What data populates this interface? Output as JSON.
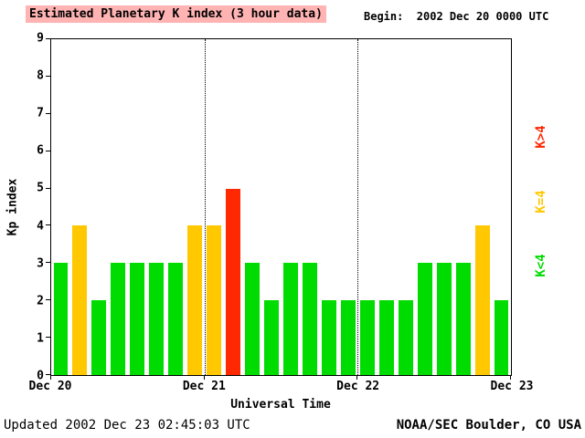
{
  "title": "Estimated Planetary K index (3 hour data)",
  "begin_label": "Begin:  2002 Dec 20 0000 UTC",
  "footer": {
    "updated": "Updated 2002 Dec 23 02:45:03 UTC",
    "source": "NOAA/SEC Boulder, CO USA"
  },
  "legend": [
    {
      "label": "K>4",
      "color": "#ff2800"
    },
    {
      "label": "K=4",
      "color": "#ffc800"
    },
    {
      "label": "K<4",
      "color": "#00dc00"
    }
  ],
  "colors": {
    "title_background": "#ffb3b3",
    "bar_low": "#00dc00",
    "bar_mid": "#ffc800",
    "bar_high": "#ff2800"
  },
  "chart_data": {
    "type": "bar",
    "title": "Estimated Planetary K index (3 hour data)",
    "xlabel": "Universal Time",
    "ylabel": "Kp index",
    "ylim": [
      0,
      9
    ],
    "yticks": [
      0,
      1,
      2,
      3,
      4,
      5,
      6,
      7,
      8,
      9
    ],
    "xticklabels": [
      "Dec 20",
      "Dec 21",
      "Dec 22",
      "Dec 23"
    ],
    "xtick_positions_pct": [
      0,
      33.3333,
      66.6667,
      100
    ],
    "day_gridlines_pct": [
      33.3333,
      66.6667
    ],
    "bar_interval_hours": 3,
    "bars_per_day": 8,
    "values": [
      3,
      4,
      2,
      3,
      3,
      3,
      3,
      4,
      4,
      5,
      3,
      2,
      3,
      3,
      2,
      2,
      2,
      2,
      2,
      3,
      3,
      3,
      4,
      2
    ],
    "color_rule": {
      "lt4": "#00dc00",
      "eq4": "#ffc800",
      "gt4": "#ff2800"
    },
    "legend_position": "right",
    "grid": "dotted vertical lines at day boundaries"
  }
}
